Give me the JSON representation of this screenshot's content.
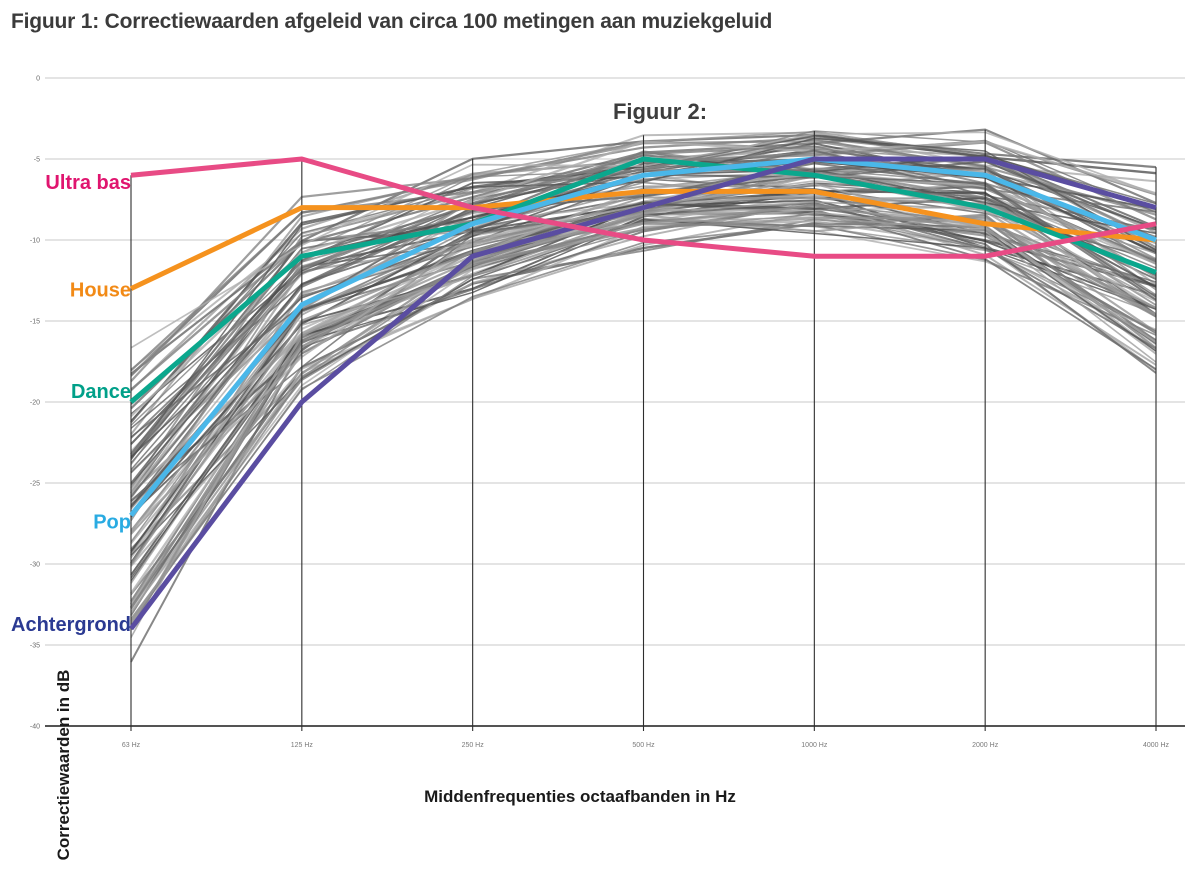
{
  "page": {
    "title": "Figuur 1: Correctiewaarden afgeleid van circa 100 metingen aan muziekgeluid",
    "overlay_caption": "Figuur 2:"
  },
  "chart_data": {
    "type": "line",
    "title": "Figuur 1: Correctiewaarden afgeleid van circa 100 metingen aan muziekgeluid",
    "xlabel": "Middenfrequenties octaafbanden in Hz",
    "ylabel": "Correctiewaarden in dB",
    "categories": [
      "63 Hz",
      "125 Hz",
      "250 Hz",
      "500 Hz",
      "1000 Hz",
      "2000 Hz",
      "4000 Hz"
    ],
    "yticks": [
      0,
      -5,
      -10,
      -15,
      -20,
      -25,
      -30,
      -35,
      -40
    ],
    "ylim": [
      -40,
      0
    ],
    "grid": true,
    "legend_position": "left-of-axis",
    "series": [
      {
        "name": "Ultra bas",
        "color": "#e84b85",
        "label_color": "#e0156f",
        "values": [
          -6,
          -5,
          -8,
          -10,
          -11,
          -11,
          -9
        ]
      },
      {
        "name": "House",
        "color": "#f5921e",
        "label_color": "#f28a16",
        "values": [
          -13,
          -8,
          -8,
          -7,
          -7,
          -9,
          -10
        ]
      },
      {
        "name": "Dance",
        "color": "#0ba78d",
        "label_color": "#00a089",
        "values": [
          -20,
          -11,
          -9,
          -5,
          -6,
          -8,
          -12
        ]
      },
      {
        "name": "Pop",
        "color": "#4ab7e9",
        "label_color": "#29abe2",
        "values": [
          -27,
          -14,
          -9,
          -6,
          -5,
          -6,
          -10
        ]
      },
      {
        "name": "Achtergrond",
        "color": "#5a4da1",
        "label_color": "#2b3a92",
        "values": [
          -34,
          -20,
          -11,
          -8,
          -5,
          -5,
          -8
        ]
      }
    ],
    "background_measurements": {
      "description": "circa 100 metingen aan muziekgeluid",
      "count": 95,
      "mean": [
        -26,
        -13.5,
        -9.5,
        -7,
        -6.3,
        -7.2,
        -12
      ],
      "spread": [
        7.5,
        5,
        3.2,
        2.6,
        2.6,
        3.0,
        4.8
      ],
      "min": [
        -40.5,
        -25,
        -17.5,
        -14.5,
        -15,
        -16,
        -26.5
      ],
      "max": [
        -7.5,
        -4.5,
        -3.2,
        -2.2,
        -1.8,
        -2.2,
        -4.2
      ]
    },
    "colors": {
      "gridline": "#c9c9c9",
      "bottom_axis": "#3c3c3c",
      "band_marker": "#2e2e2e",
      "tick_text": "#6b6b6b"
    }
  }
}
